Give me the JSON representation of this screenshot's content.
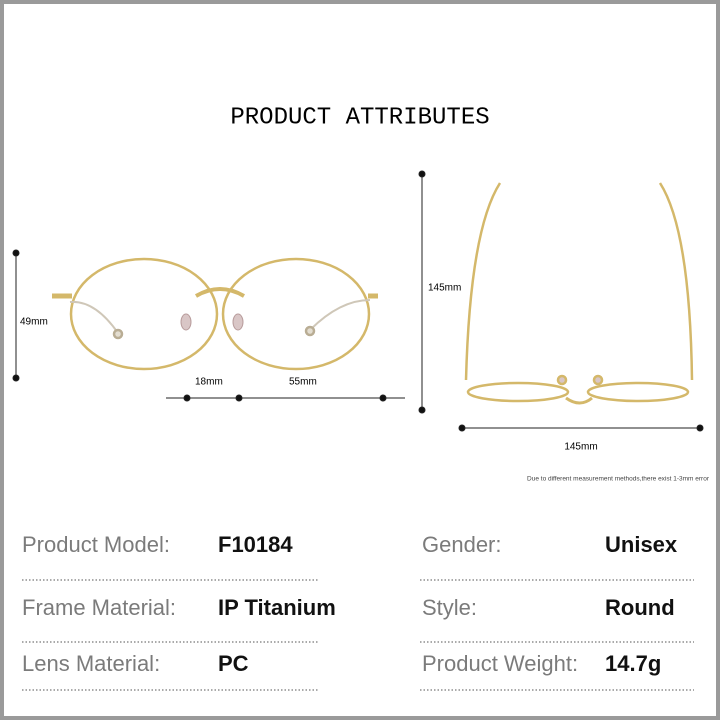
{
  "header": {
    "title": "PRODUCT ATTRIBUTES"
  },
  "dimensions": {
    "lens_height": "49mm",
    "bridge_width": "18mm",
    "lens_width": "55mm",
    "temple_length": "145mm",
    "frame_width": "145mm"
  },
  "note": "Due to different measurement methods,there exist 1-3mm error",
  "attributes": {
    "rows": [
      [
        {
          "label": "Product Model:",
          "value": "F10184"
        },
        {
          "label": "Gender:",
          "value": "Unisex"
        }
      ],
      [
        {
          "label": "Frame Material:",
          "value": "IP Titanium"
        },
        {
          "label": "Style:",
          "value": "Round"
        }
      ],
      [
        {
          "label": "Lens Material:",
          "value": "PC"
        },
        {
          "label": "Product Weight:",
          "value": "14.7g"
        }
      ]
    ]
  }
}
